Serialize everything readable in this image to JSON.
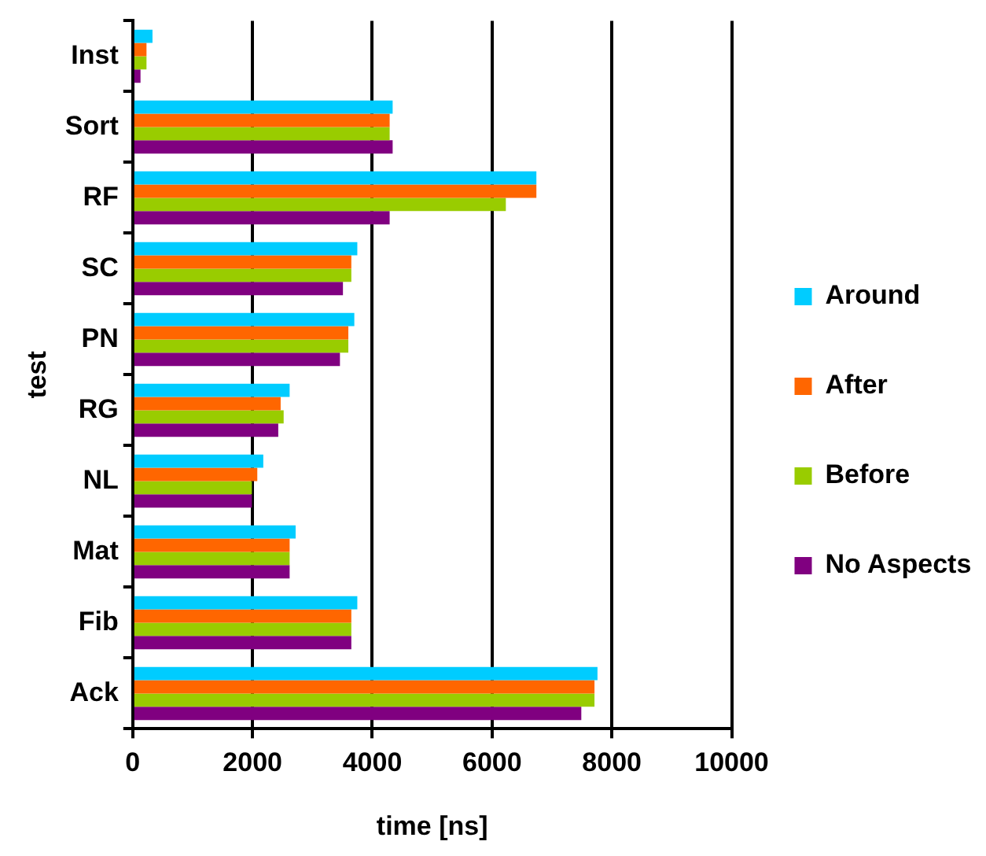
{
  "chart_data": {
    "type": "bar",
    "orientation": "horizontal",
    "xlabel": "time [ns]",
    "ylabel": "test",
    "categories": [
      "Inst",
      "Sort",
      "RF",
      "SC",
      "PN",
      "RG",
      "NL",
      "Mat",
      "Fib",
      "Ack"
    ],
    "series": [
      {
        "name": "Around",
        "color": "#00ccff",
        "values": [
          330,
          4340,
          6740,
          3750,
          3700,
          2620,
          2180,
          2720,
          3750,
          7760
        ]
      },
      {
        "name": "After",
        "color": "#ff6600",
        "values": [
          230,
          4290,
          6740,
          3650,
          3600,
          2470,
          2080,
          2620,
          3650,
          7710
        ]
      },
      {
        "name": "Before",
        "color": "#99cc00",
        "values": [
          230,
          4290,
          6230,
          3650,
          3600,
          2520,
          1990,
          2620,
          3650,
          7710
        ]
      },
      {
        "name": "No Aspects",
        "color": "#800080",
        "values": [
          130,
          4340,
          4290,
          3510,
          3460,
          2430,
          1990,
          2620,
          3650,
          7490
        ]
      }
    ],
    "xlim": [
      0,
      10000
    ],
    "xticks": [
      0,
      2000,
      4000,
      6000,
      8000,
      10000
    ],
    "grid": "x",
    "legend": "right"
  }
}
